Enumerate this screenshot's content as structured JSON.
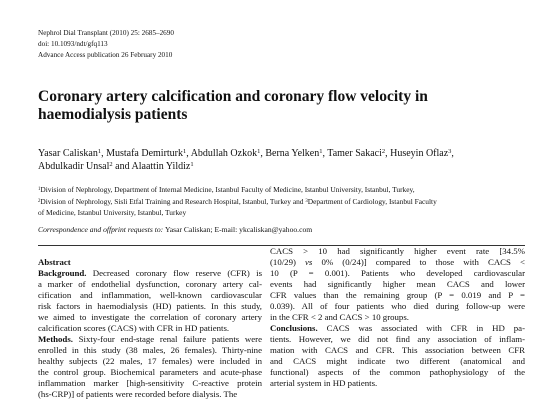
{
  "header": {
    "lines": [
      "Nephrol Dial Transplant (2010) 25: 2685–2690",
      "doi: 10.1093/ndt/gfq113",
      "Advance Access publication 26 February 2010"
    ]
  },
  "title": {
    "lines": [
      "Coronary artery calcification and coronary flow velocity in",
      "haemodialysis patients"
    ]
  },
  "authors": {
    "lines": [
      [
        {
          "text": "Yasar Caliskan"
        },
        {
          "sup": "1"
        },
        {
          "text": ", Mustafa Demirturk"
        },
        {
          "sup": "1"
        },
        {
          "text": ", Abdullah Ozkok"
        },
        {
          "sup": "1"
        },
        {
          "text": ", Berna Yelken"
        },
        {
          "sup": "1"
        },
        {
          "text": ", Tamer Sakaci"
        },
        {
          "sup": "2"
        },
        {
          "text": ", Huseyin Oflaz"
        },
        {
          "sup": "3"
        },
        {
          "text": ","
        }
      ],
      [
        {
          "text": "Abdulkadir Unsal"
        },
        {
          "sup": "2"
        },
        {
          "text": " and Alaattin Yildiz"
        },
        {
          "sup": "1"
        }
      ]
    ]
  },
  "affiliations": {
    "lines": [
      [
        {
          "sup": "1"
        },
        {
          "text": "Division of Nephrology, Department of Internal Medicine, Istanbul Faculty of Medicine, Istanbul University, Istanbul, Turkey,"
        }
      ],
      [
        {
          "sup": "2"
        },
        {
          "text": "Division of Nephrology, Sisli Etfal Training and Research Hospital, Istanbul, Turkey and "
        },
        {
          "sup": "3"
        },
        {
          "text": "Department of Cardiology, Istanbul Faculty"
        }
      ],
      [
        {
          "text": "of Medicine, Istanbul University, Istanbul, Turkey"
        }
      ]
    ]
  },
  "correspondence": [
    {
      "italic": "Correspondence and offprint requests to: "
    },
    {
      "text": "Yasar Caliskan; E-mail: ykcaliskan@yahoo.com"
    }
  ],
  "abstract": {
    "left": [
      [
        {
          "bold": "Abstract"
        }
      ],
      [
        {
          "bold": "Background."
        },
        {
          "text": " Decreased coronary flow reserve (CFR) is"
        }
      ],
      [
        {
          "text": "a marker of endothelial dysfunction, coronary artery cal-"
        }
      ],
      [
        {
          "text": "cification and inflammation, well-known cardiovascular"
        }
      ],
      [
        {
          "text": "risk factors in haemodialysis (HD) patients. In this study,"
        }
      ],
      [
        {
          "text": "we aimed to investigate the correlation of coronary artery"
        }
      ],
      [
        {
          "text": "calcification scores (CACS) with CFR in HD patients."
        }
      ],
      [
        {
          "bold": "Methods."
        },
        {
          "text": " Sixty-four end-stage renal failure patients were"
        }
      ],
      [
        {
          "text": "enrolled in this study (38 males, 26 females). Thirty-nine"
        }
      ],
      [
        {
          "text": "healthy subjects (22 males, 17 females) were included in"
        }
      ],
      [
        {
          "text": "the control group. Biochemical parameters and acute-phase"
        }
      ],
      [
        {
          "text": "inflammation marker [high-sensitivity C-reactive protein"
        }
      ],
      [
        {
          "text": "(hs-CRP)] of patients were recorded before dialysis. The"
        }
      ]
    ],
    "right": [
      [
        {
          "text": "CACS > 10 had significantly higher event rate [34.5%"
        }
      ],
      [
        {
          "text": "(10/29) "
        },
        {
          "italic": "vs"
        },
        {
          "text": " 0% (0/24)] compared to those with CACS <"
        }
      ],
      [
        {
          "text": "10 (P = 0.001). Patients who developed cardiovascular"
        }
      ],
      [
        {
          "text": "events had significantly higher mean CACS and lower"
        }
      ],
      [
        {
          "text": "CFR values than the remaining group (P = 0.019 and P ="
        }
      ],
      [
        {
          "text": "0.039). All of four patients who died during follow-up were"
        }
      ],
      [
        {
          "text": "in the CFR < 2 and CACS > 10 groups."
        }
      ],
      [
        {
          "bold": "Conclusions."
        },
        {
          "text": " CACS was associated with CFR in HD pa-"
        }
      ],
      [
        {
          "text": "tients. However, we did not find any association of inflam-"
        }
      ],
      [
        {
          "text": "mation with CACS and CFR. This association between CFR"
        }
      ],
      [
        {
          "text": "and CACS might indicate two different (anatomical and"
        }
      ],
      [
        {
          "text": "functional) aspects of the common pathophysiology of the"
        }
      ],
      [
        {
          "text": "arterial system in HD patients."
        }
      ]
    ]
  }
}
